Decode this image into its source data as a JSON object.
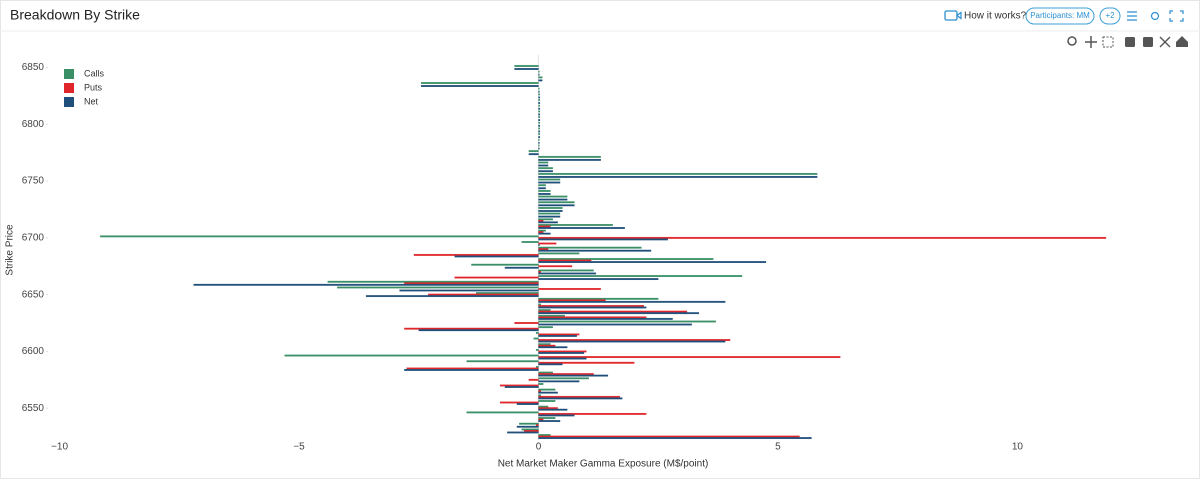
{
  "header": {
    "title": "Breakdown By Strike",
    "help": "How it works?",
    "participants": "Participants: MM",
    "more": "+2"
  },
  "chart_data": {
    "type": "bar",
    "orientation": "horizontal",
    "xlabel": "Net Market Maker Gamma Exposure (M$/point)",
    "ylabel": "Strike Price",
    "legend": "top-left",
    "grid": false,
    "xlim": [
      -10.2,
      13.5
    ],
    "xticks": [
      {
        "value": -10,
        "label": "−10"
      },
      {
        "value": -5,
        "label": "−5"
      },
      0,
      5,
      10
    ],
    "ylim": [
      6522,
      6861
    ],
    "yticks": [
      6550,
      6600,
      6650,
      6700,
      6750,
      6800,
      6850
    ],
    "y": [
      6525,
      6530,
      6535,
      6540,
      6545,
      6550,
      6555,
      6560,
      6565,
      6570,
      6575,
      6580,
      6585,
      6590,
      6595,
      6600,
      6605,
      6610,
      6615,
      6620,
      6625,
      6630,
      6635,
      6640,
      6645,
      6650,
      6655,
      6660,
      6665,
      6670,
      6675,
      6680,
      6685,
      6690,
      6695,
      6700,
      6705,
      6710,
      6715,
      6720,
      6725,
      6730,
      6735,
      6740,
      6745,
      6750,
      6755,
      6760,
      6765,
      6770,
      6775,
      6780,
      6785,
      6790,
      6795,
      6800,
      6805,
      6810,
      6815,
      6820,
      6825,
      6830,
      6835,
      6840,
      6845,
      6850,
      6855
    ],
    "series": [
      {
        "name": "Calls",
        "color": "#3a8f66",
        "values": [
          0.25,
          -0.35,
          -0.4,
          0.35,
          -1.5,
          0.2,
          0.35,
          0.05,
          0.35,
          0.1,
          1.05,
          0.3,
          -0.05,
          -1.5,
          -5.3,
          -0.05,
          0.25,
          -0.1,
          -0.05,
          0.3,
          3.7,
          0.55,
          0.25,
          0.05,
          2.5,
          -1.3,
          -4.2,
          -4.4,
          4.25,
          1.15,
          -1.4,
          3.65,
          0.85,
          2.15,
          -0.35,
          -9.15,
          0.15,
          1.55,
          0.3,
          0.45,
          0.5,
          0.75,
          0.6,
          0.25,
          0.15,
          0.45,
          5.82,
          0.3,
          0.2,
          1.3,
          -0.2,
          0.02,
          0.02,
          0.03,
          0.03,
          0.03,
          0.03,
          0.03,
          0.03,
          0.03,
          0.03,
          0.02,
          -2.45,
          0.08,
          0.02,
          -0.5,
          0
        ]
      },
      {
        "name": "Puts",
        "color": "#e0262a",
        "values": [
          5.45,
          -0.3,
          -0.05,
          0.1,
          2.25,
          0.4,
          -0.8,
          1.7,
          0.05,
          -0.8,
          -0.2,
          1.15,
          -2.75,
          2.0,
          6.3,
          1.0,
          0.35,
          4.0,
          0.85,
          -2.8,
          -0.5,
          2.25,
          3.1,
          2.2,
          1.4,
          -2.3,
          1.3,
          -2.8,
          -1.75,
          0.05,
          0.7,
          1.1,
          -2.6,
          0.2,
          0.37,
          11.85,
          0.1,
          0.25,
          0.1,
          0,
          0,
          0,
          0,
          0,
          0,
          0,
          0,
          0,
          0,
          0,
          0,
          0,
          0,
          0,
          0,
          0,
          0,
          0,
          0,
          0,
          0,
          0,
          0,
          0,
          0,
          0,
          0
        ]
      },
      {
        "name": "Net",
        "color": "#1f4f7a",
        "values": [
          5.7,
          -0.65,
          -0.45,
          0.45,
          0.75,
          0.6,
          -0.45,
          1.75,
          0.4,
          -0.7,
          0.85,
          1.45,
          -2.8,
          0.5,
          1.0,
          0.95,
          0.6,
          3.9,
          0.8,
          -2.5,
          3.2,
          2.8,
          3.35,
          2.25,
          3.9,
          -3.6,
          -2.9,
          -7.2,
          2.5,
          1.2,
          -0.7,
          4.75,
          -1.75,
          2.35,
          0.02,
          2.7,
          0.25,
          1.8,
          0.4,
          0.45,
          0.5,
          0.75,
          0.6,
          0.25,
          0.15,
          0.45,
          5.82,
          0.3,
          0.2,
          1.3,
          -0.2,
          0.02,
          0.02,
          0.03,
          0.03,
          0.03,
          0.03,
          0.03,
          0.03,
          0.03,
          0.03,
          0.02,
          -2.45,
          0.08,
          0.02,
          -0.5,
          0
        ]
      }
    ]
  }
}
